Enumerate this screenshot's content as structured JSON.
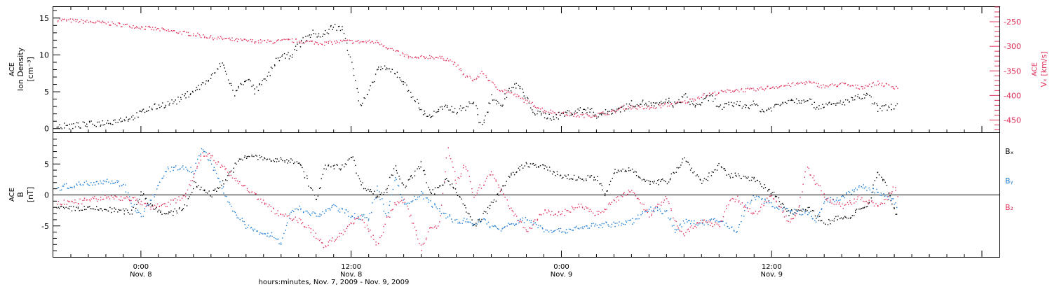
{
  "colors": {
    "black": "#000000",
    "red": "#e0305a",
    "blue": "#1478d2"
  },
  "chart_data": [
    {
      "type": "scatter",
      "panel": "top",
      "ylabel_left": [
        "ACE",
        "Ion Density",
        "[cm⁻³]"
      ],
      "ylabel_right": [
        "ACE",
        "Vₓ [km/s]"
      ],
      "yticks_left": [
        "0",
        "5",
        "10",
        "15"
      ],
      "ylim_left": [
        -0.5,
        16.5
      ],
      "yticks_right": [
        "-250",
        "-300",
        "-350",
        "-400",
        "-450"
      ],
      "ylim_right": [
        -475,
        -220
      ],
      "x_unit": "hours since Nov. 7 2009 00:00",
      "xlim": [
        19.0,
        73.0
      ],
      "series": [
        {
          "name": "Ion Density",
          "axis": "left",
          "color": "#000000",
          "x": [
            19.2,
            20.5,
            22,
            23.5,
            24.5,
            26,
            27.2,
            28,
            28.6,
            29.3,
            30,
            30.5,
            31.2,
            31.8,
            32.5,
            33.2,
            33.8,
            34.3,
            35,
            35.5,
            36,
            36.5,
            37,
            37.5,
            38.5,
            39.5,
            40,
            40.5,
            41,
            41.5,
            42,
            42.5,
            43,
            43.3,
            43.6,
            44,
            44.5,
            45,
            45.5,
            46,
            46.5,
            47.5,
            48.5,
            49.5,
            50,
            50.5,
            51,
            51.5,
            52,
            52.5,
            53,
            53.5,
            54,
            54.5,
            55,
            55.5,
            56,
            56.5,
            57,
            57.5,
            58,
            58.5,
            59,
            59.5,
            60,
            60.5,
            61,
            61.5,
            62,
            62.5,
            63,
            63.5,
            64,
            64.5,
            65,
            65.5,
            66,
            66.5,
            67,
            67.2
          ],
          "y": [
            0.3,
            0.5,
            0.9,
            1.6,
            2.8,
            3.8,
            5.5,
            7,
            9,
            4.8,
            7,
            5.1,
            7,
            9.6,
            10,
            12,
            13,
            12.6,
            14,
            13.5,
            9.3,
            3,
            5,
            8.3,
            7.8,
            4.5,
            2.4,
            1.7,
            2.6,
            2.9,
            2.5,
            3,
            3.7,
            1.2,
            0.8,
            4.5,
            3,
            5.4,
            6,
            4,
            2.1,
            1.6,
            2.3,
            2.7,
            1.9,
            2.2,
            2.6,
            2.8,
            3.4,
            3.6,
            3.4,
            3.2,
            3.9,
            3.2,
            4.6,
            3.1,
            3.6,
            4.4,
            2.9,
            3.2,
            3.5,
            3.1,
            3.4,
            2.4,
            2.9,
            3.4,
            4.1,
            3.8,
            4.2,
            3,
            3.3,
            3.2,
            3.6,
            3.9,
            4.3,
            4.5,
            2.8,
            2.9,
            3.1,
            3.2
          ]
        },
        {
          "name": "Vₓ",
          "axis": "right",
          "color": "#e0305a",
          "x": [
            19.2,
            20.5,
            22,
            23.5,
            25,
            26.5,
            28,
            29.5,
            30.5,
            31.5,
            32.5,
            33.5,
            34.5,
            35.5,
            36.5,
            37.5,
            38.5,
            39.5,
            40.5,
            41.5,
            42,
            42.5,
            43,
            43.5,
            44,
            44.5,
            45,
            45.5,
            46,
            46.5,
            47,
            48,
            49,
            49.5,
            50,
            51,
            51.5,
            52,
            53,
            54,
            55,
            56,
            57,
            58,
            59,
            60,
            61,
            62,
            63,
            64,
            65,
            66,
            67,
            67.2
          ],
          "y": [
            -245,
            -248,
            -252,
            -258,
            -265,
            -272,
            -281,
            -287,
            -289,
            -290,
            -287,
            -290,
            -293,
            -289,
            -290,
            -290,
            -310,
            -324,
            -320,
            -325,
            -338,
            -360,
            -368,
            -352,
            -375,
            -387,
            -393,
            -402,
            -412,
            -420,
            -430,
            -436,
            -440,
            -440,
            -438,
            -432,
            -423,
            -423,
            -425,
            -418,
            -413,
            -400,
            -393,
            -388,
            -388,
            -382,
            -378,
            -372,
            -381,
            -376,
            -383,
            -374,
            -382,
            -381
          ]
        }
      ]
    },
    {
      "type": "scatter",
      "panel": "bottom",
      "ylabel_left": [
        "ACE",
        "B",
        "[nT]"
      ],
      "yticks_left": [
        "5",
        "0",
        "-5"
      ],
      "ylim_left": [
        -10,
        10
      ],
      "zero_line": 0,
      "legend": [
        "Bₓ",
        "Bᵧ",
        "B₂"
      ],
      "legend_position": "right",
      "x_unit": "hours since Nov. 7 2009 00:00",
      "xlim": [
        19.0,
        73.0
      ],
      "series": [
        {
          "name": "Bₓ",
          "color": "#000000",
          "x": [
            19.2,
            20.5,
            22,
            23.5,
            24,
            24.5,
            25.5,
            26.5,
            27,
            28,
            28.8,
            29.5,
            30.2,
            30.8,
            31.5,
            32.3,
            33,
            34,
            34.5,
            35.5,
            36,
            36.5,
            37.5,
            38,
            38.5,
            39,
            40,
            40.5,
            41.5,
            42.5,
            43,
            44,
            45,
            46,
            47,
            48,
            49,
            50,
            50.5,
            51,
            52,
            53,
            54,
            55,
            56,
            57,
            57.5,
            58.5,
            59,
            60,
            61,
            62,
            63,
            64,
            64.5,
            65,
            65.5,
            66,
            66.5,
            67,
            67.2
          ],
          "y": [
            -2.2,
            -2.1,
            -2.3,
            -2.7,
            0.6,
            -1.5,
            -3.2,
            -1.8,
            1.8,
            0.2,
            2.4,
            5.4,
            6.5,
            6,
            5.7,
            5.6,
            5.5,
            -0.8,
            4.7,
            4.5,
            6.6,
            2,
            -0.2,
            0.8,
            4.8,
            1.3,
            5.1,
            0.1,
            2.8,
            -2,
            -5,
            -1.5,
            3,
            5.1,
            4.5,
            3.1,
            2.7,
            2.9,
            -0.1,
            3.8,
            4.2,
            1.9,
            2.3,
            5.9,
            2.1,
            4.8,
            3.2,
            3.1,
            2.5,
            0.4,
            -2.8,
            -2,
            -4.5,
            -3.5,
            -3.8,
            -2,
            -1.5,
            3.8,
            2,
            -2.5,
            -3.8
          ]
        },
        {
          "name": "Bᵧ",
          "color": "#1478d2",
          "x": [
            19.2,
            20.5,
            22,
            23,
            23.5,
            24,
            25.5,
            26.5,
            27,
            27.5,
            28.5,
            29,
            29.5,
            30,
            30.5,
            31,
            31.5,
            32,
            32.5,
            33,
            34,
            35,
            36,
            37,
            37.5,
            38,
            38.5,
            39,
            40,
            41,
            42,
            42.5,
            43,
            43.5,
            44,
            44.5,
            45,
            46,
            47,
            48,
            49,
            50,
            51,
            52,
            53,
            54,
            54.5,
            55,
            56,
            57,
            58,
            58.5,
            59,
            60,
            61,
            62,
            62.5,
            63,
            64,
            65,
            66,
            67,
            67.2
          ],
          "y": [
            1.2,
            1.8,
            2.4,
            1.8,
            -1.5,
            -3.5,
            4.2,
            4.5,
            3.8,
            7.8,
            2,
            -1.1,
            -3.5,
            -5,
            -5.8,
            -6,
            -6.5,
            -7.9,
            -2.7,
            -2.1,
            -3.3,
            -1.8,
            -3.2,
            -3.7,
            1.1,
            -3.7,
            3.3,
            -1.6,
            0.2,
            -2.5,
            -4.2,
            -4.1,
            -4.7,
            -3.8,
            -5,
            -5.5,
            -4.8,
            -3.8,
            -5.5,
            -5.8,
            -5.2,
            -4.8,
            -4.7,
            -4.3,
            -2,
            -2.8,
            -5.8,
            -4.3,
            -4.4,
            -4.1,
            -5.8,
            -1.9,
            -0.2,
            -1.5,
            -2.6,
            -2.8,
            -4.3,
            -1,
            -0.4,
            1.5,
            0.6,
            -1.1,
            -2.2
          ]
        },
        {
          "name": "B₂",
          "color": "#e0305a",
          "x": [
            19.2,
            20.5,
            22,
            23.5,
            24.5,
            25.5,
            26.5,
            27.5,
            28,
            29,
            30,
            31,
            31.5,
            32,
            33,
            33.5,
            34.5,
            35.5,
            36,
            36.5,
            37,
            37.5,
            38,
            38.5,
            39,
            40,
            40.5,
            41,
            41.5,
            42,
            42.5,
            43,
            44,
            45,
            46,
            47,
            48,
            49,
            50,
            51,
            52,
            53,
            54,
            54.5,
            55,
            56,
            57,
            57.5,
            58,
            59,
            60,
            61,
            61.5,
            62,
            63,
            64,
            65,
            66,
            66.5,
            67,
            67.2
          ],
          "y": [
            -1.2,
            -1,
            -0.3,
            -0.5,
            -2,
            -1.4,
            -0.1,
            6.8,
            6.2,
            3.6,
            1.2,
            -1.1,
            -2.4,
            -3.2,
            -4,
            -5.2,
            -8.2,
            -6,
            -4.7,
            -3.5,
            -5.6,
            -8.1,
            -3.9,
            -1.2,
            -0.8,
            -8.5,
            -5.2,
            -4.7,
            7.5,
            2,
            5,
            -0.1,
            3.7,
            -1.7,
            -5.9,
            -2.6,
            -3,
            -1.6,
            -3,
            -0.9,
            1,
            -3.1,
            -0.2,
            -4.5,
            -6.1,
            -4.3,
            -4.7,
            -1.2,
            -0.5,
            -3.2,
            0.1,
            -4.5,
            -2.2,
            4.4,
            -0.2,
            -1.8,
            -0.4,
            -1.5,
            -0.8,
            1.6,
            -1.3
          ]
        }
      ]
    }
  ],
  "x_axis": {
    "ticks": [
      {
        "hours": 24,
        "time": "0:00",
        "date": "Nov. 8"
      },
      {
        "hours": 36,
        "time": "12:00",
        "date": "Nov. 8"
      },
      {
        "hours": 48,
        "time": "0:00",
        "date": "Nov. 9"
      },
      {
        "hours": 60,
        "time": "12:00",
        "date": "Nov. 9"
      }
    ],
    "caption": "hours:minutes, Nov.  7, 2009 - Nov.  9, 2009"
  }
}
